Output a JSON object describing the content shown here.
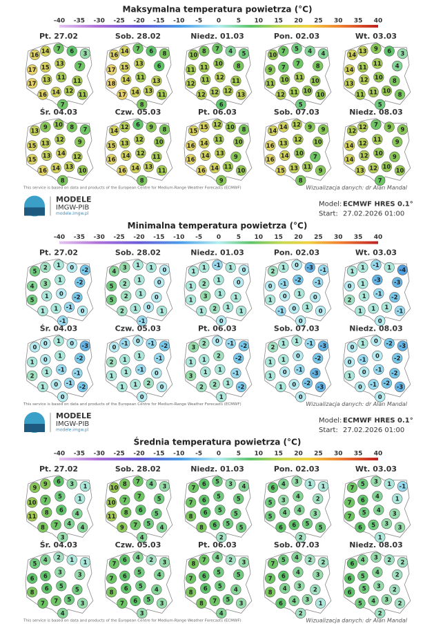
{
  "panels": [
    {
      "title": "Maksymalna temperatura powietrza (°C)",
      "scale_ticks": [
        -40,
        -35,
        -30,
        -25,
        -20,
        -15,
        -10,
        -5,
        0,
        5,
        10,
        15,
        20,
        25,
        30,
        35,
        40
      ],
      "maps": [
        {
          "label": "Pt. 27.02",
          "values": [
            16,
            14,
            7,
            6,
            3,
            17,
            15,
            13,
            7,
            17,
            13,
            11,
            11,
            16,
            14,
            12,
            11,
            7
          ]
        },
        {
          "label": "Sob. 28.02",
          "values": [
            16,
            14,
            7,
            6,
            8,
            17,
            15,
            13,
            6,
            18,
            14,
            11,
            13,
            17,
            14,
            13,
            11,
            8
          ]
        },
        {
          "label": "Niedz. 01.03",
          "values": [
            10,
            8,
            7,
            4,
            5,
            11,
            11,
            10,
            8,
            12,
            11,
            12,
            11,
            12,
            12,
            12,
            13,
            6
          ]
        },
        {
          "label": "Pon. 02.03",
          "values": [
            10,
            7,
            5,
            4,
            4,
            9,
            7,
            7,
            8,
            11,
            10,
            11,
            10,
            12,
            11,
            10,
            10,
            5
          ]
        },
        {
          "label": "Wt. 03.03",
          "values": [
            14,
            13,
            9,
            6,
            3,
            14,
            11,
            11,
            4,
            13,
            12,
            10,
            8,
            11,
            11,
            10,
            8,
            5
          ]
        },
        {
          "label": "Śr. 04.03",
          "values": [
            13,
            9,
            10,
            8,
            7,
            15,
            13,
            12,
            9,
            15,
            13,
            14,
            12,
            16,
            14,
            13,
            10,
            8
          ]
        },
        {
          "label": "Czw. 05.03",
          "values": [
            14,
            12,
            6,
            9,
            8,
            15,
            13,
            12,
            10,
            16,
            14,
            12,
            11,
            16,
            14,
            13,
            11,
            8
          ]
        },
        {
          "label": "Pt. 06.03",
          "values": [
            15,
            15,
            12,
            10,
            8,
            16,
            14,
            11,
            10,
            16,
            14,
            13,
            9,
            16,
            14,
            11,
            10,
            9
          ]
        },
        {
          "label": "Sob. 07.03",
          "values": [
            14,
            14,
            12,
            9,
            9,
            16,
            13,
            12,
            10,
            16,
            14,
            10,
            7,
            15,
            13,
            11,
            9,
            8
          ]
        },
        {
          "label": "Niedz. 08.03",
          "values": [
            12,
            12,
            7,
            9,
            9,
            14,
            12,
            11,
            9,
            14,
            12,
            10,
            9,
            13,
            12,
            10,
            10,
            7
          ]
        }
      ],
      "footer": "This service is based on data and products of the European Centre for Medium-Range Weather Forecasts (ECMWF)",
      "credit": "Wizualizacja danych: dr Alan Mandal"
    },
    {
      "header": {
        "logo_title": "MODELE",
        "logo_org": "IMGW-PIB",
        "logo_url": "modele.imgw.pl",
        "model_label": "Model:",
        "model": "ECMWF HRES 0.1°",
        "start_label": "Start:",
        "start": "27.02.2026 01:00"
      },
      "title": "Minimalna temperatura powietrza (°C)",
      "scale_ticks": [
        -40,
        -35,
        -30,
        -25,
        -20,
        -15,
        -10,
        -5,
        0,
        5,
        10,
        15,
        20,
        25,
        30,
        35,
        40
      ],
      "maps": [
        {
          "label": "Pt. 27.02",
          "values": [
            5,
            2,
            1,
            0,
            -2,
            4,
            3,
            1,
            -2,
            5,
            1,
            0,
            -2,
            1,
            1,
            -1,
            0,
            -1
          ]
        },
        {
          "label": "Sob. 28.02",
          "values": [
            4,
            3,
            1,
            1,
            0,
            5,
            2,
            1,
            0,
            5,
            2,
            1,
            0,
            2,
            1,
            0,
            1,
            -1
          ]
        },
        {
          "label": "Niedz. 01.03",
          "values": [
            1,
            1,
            -1,
            1,
            0,
            1,
            2,
            1,
            0,
            1,
            3,
            1,
            1,
            1,
            2,
            1,
            1,
            0
          ]
        },
        {
          "label": "Pon. 02.03",
          "values": [
            2,
            1,
            0,
            -3,
            -1,
            0,
            -1,
            -2,
            -1,
            1,
            0,
            1,
            0,
            -1,
            0,
            1,
            0,
            0
          ]
        },
        {
          "label": "Wt. 03.03",
          "values": [
            1,
            1,
            -1,
            1,
            -4,
            0,
            1,
            -3,
            -3,
            2,
            1,
            -1,
            -2,
            1,
            1,
            1,
            -1,
            0
          ]
        },
        {
          "label": "Śr. 04.03",
          "values": [
            0,
            0,
            1,
            0,
            -3,
            1,
            0,
            1,
            -2,
            2,
            1,
            -1,
            -1,
            1,
            0,
            -1,
            -2,
            0
          ]
        },
        {
          "label": "Czw. 05.03",
          "values": [
            0,
            -1,
            0,
            -1,
            -2,
            2,
            1,
            1,
            -1,
            1,
            1,
            -1,
            0,
            1,
            1,
            2,
            0,
            0
          ]
        },
        {
          "label": "Pt. 06.03",
          "values": [
            3,
            2,
            0,
            -1,
            -2,
            1,
            1,
            2,
            -2,
            3,
            1,
            1,
            -1,
            2,
            2,
            1,
            -2,
            1
          ]
        },
        {
          "label": "Sob. 07.03",
          "values": [
            2,
            1,
            1,
            -1,
            -3,
            1,
            1,
            0,
            -2,
            1,
            0,
            -1,
            -3,
            1,
            0,
            -2,
            -3,
            0
          ]
        },
        {
          "label": "Niedz. 08.03",
          "values": [
            0,
            1,
            0,
            -2,
            -3,
            0,
            -1,
            0,
            -2,
            1,
            0,
            -1,
            -2,
            0,
            -1,
            -2,
            -3,
            0
          ]
        }
      ],
      "footer": "This service is based on data and products of the European Centre for Medium-Range Weather Forecasts (ECMWF)",
      "credit": "Wizualizacja danych: dr Alan Mandal"
    },
    {
      "header": {
        "logo_title": "MODELE",
        "logo_org": "IMGW-PIB",
        "logo_url": "modele.imgw.pl",
        "model_label": "Model:",
        "model": "ECMWF HRES 0.1°",
        "start_label": "Start:",
        "start": "27.02.2026 01:00"
      },
      "title": "Średnia temperatura powietrza (°C)",
      "scale_ticks": [
        -40,
        -35,
        -30,
        -25,
        -20,
        -15,
        -10,
        -5,
        0,
        5,
        10,
        15,
        20,
        25,
        30,
        35,
        40
      ],
      "maps": [
        {
          "label": "Pt. 27.02",
          "values": [
            9,
            9,
            6,
            3,
            1,
            10,
            7,
            5,
            1,
            11,
            8,
            6,
            4,
            8,
            7,
            4,
            4,
            3
          ]
        },
        {
          "label": "Sob. 28.02",
          "values": [
            10,
            8,
            7,
            4,
            3,
            10,
            7,
            7,
            5,
            11,
            8,
            6,
            5,
            9,
            7,
            5,
            4,
            4
          ]
        },
        {
          "label": "Niedz. 01.03",
          "values": [
            7,
            6,
            5,
            3,
            4,
            7,
            6,
            5,
            5,
            8,
            6,
            5,
            5,
            8,
            6,
            5,
            5,
            2
          ]
        },
        {
          "label": "Pon. 02.03",
          "values": [
            6,
            4,
            3,
            1,
            1,
            5,
            3,
            4,
            2,
            5,
            4,
            4,
            3,
            6,
            6,
            5,
            5,
            2
          ]
        },
        {
          "label": "Wt. 03.03",
          "values": [
            7,
            5,
            3,
            1,
            -1,
            7,
            6,
            4,
            1,
            7,
            5,
            4,
            3,
            6,
            5,
            3,
            3,
            1
          ]
        },
        {
          "label": "Śr. 04.03",
          "values": [
            5,
            4,
            2,
            1,
            1,
            6,
            6,
            3,
            3,
            8,
            6,
            5,
            5,
            7,
            7,
            5,
            3,
            4
          ]
        },
        {
          "label": "Czw. 05.03",
          "values": [
            7,
            6,
            4,
            2,
            3,
            7,
            6,
            5,
            4,
            8,
            6,
            5,
            4,
            7,
            6,
            5,
            3,
            3
          ]
        },
        {
          "label": "Pt. 06.03",
          "values": [
            8,
            7,
            4,
            2,
            3,
            7,
            6,
            5,
            5,
            8,
            6,
            5,
            4,
            8,
            7,
            5,
            3,
            4
          ]
        },
        {
          "label": "Sob. 07.03",
          "values": [
            7,
            5,
            4,
            2,
            2,
            7,
            6,
            4,
            3,
            8,
            4,
            3,
            2,
            6,
            4,
            3,
            1,
            2
          ]
        },
        {
          "label": "Niedz. 08.03",
          "values": [
            6,
            4,
            3,
            2,
            2,
            6,
            5,
            4,
            2,
            6,
            5,
            3,
            2,
            5,
            4,
            3,
            2,
            2
          ]
        }
      ],
      "footer": "This service is based on data and products of the European Centre for Medium-Range Weather Forecasts (ECMWF)",
      "credit": "Wizualizacja danych: dr Alan Mandal"
    }
  ]
}
